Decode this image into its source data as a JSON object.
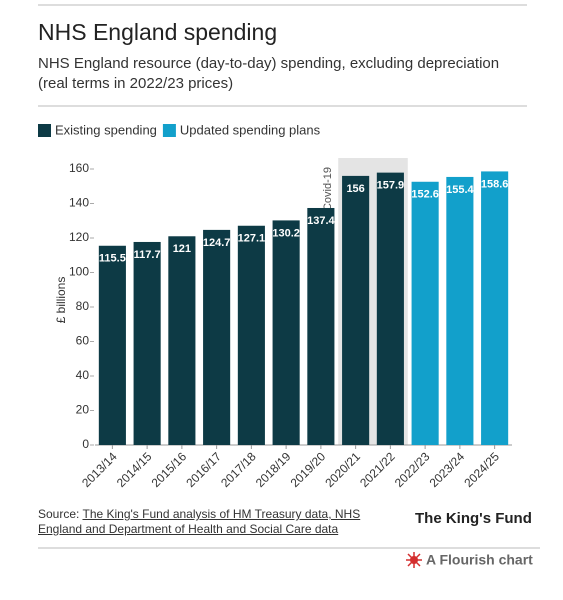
{
  "chart_data": {
    "type": "bar",
    "title": "NHS England spending",
    "subtitle_lines": [
      "NHS England resource (day-to-day) spending, excluding depreciation",
      "(real terms in 2022/23 prices)"
    ],
    "y_label": "£ billions",
    "annotation": "Covid-19",
    "categories": [
      "2013/14",
      "2014/15",
      "2015/16",
      "2016/17",
      "2017/18",
      "2018/19",
      "2019/20",
      "2020/21",
      "2021/22",
      "2022/23",
      "2023/24",
      "2024/25"
    ],
    "series": [
      {
        "name": "Existing spending",
        "color": "#0d3a45",
        "values": [
          115.5,
          117.7,
          121,
          124.7,
          127.1,
          130.2,
          137.4,
          156,
          157.9,
          null,
          null,
          null
        ]
      },
      {
        "name": "Updated spending plans",
        "color": "#12a0cb",
        "values": [
          null,
          null,
          null,
          null,
          null,
          null,
          null,
          null,
          null,
          152.6,
          155.4,
          158.6
        ]
      }
    ],
    "ylim": [
      0,
      160
    ],
    "yticks": [
      0,
      20,
      40,
      60,
      80,
      100,
      120,
      140,
      160
    ],
    "source_prefix": "Source:",
    "source_link": "The King's Fund analysis of HM Treasury data, NHS England and Department of Health and Social Care data",
    "logo": "The King's Fund",
    "footer": "A Flourish chart"
  }
}
